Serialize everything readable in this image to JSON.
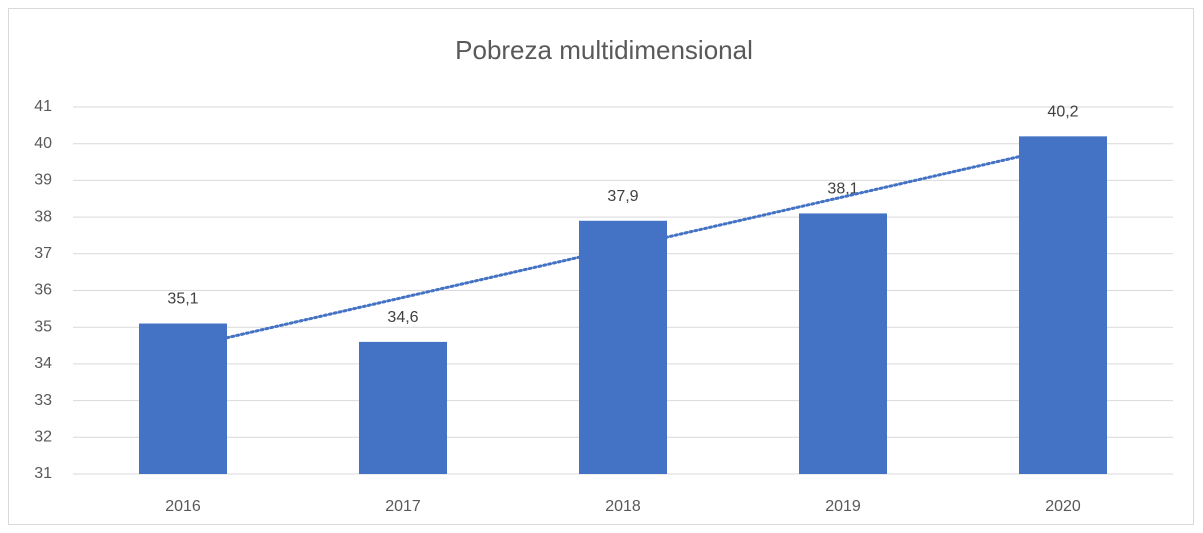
{
  "chart_data": {
    "type": "bar",
    "title": "Pobreza multidimensional",
    "categories": [
      "2016",
      "2017",
      "2018",
      "2019",
      "2020"
    ],
    "values": [
      35.1,
      34.6,
      37.9,
      38.1,
      40.2
    ],
    "value_labels": [
      "35,1",
      "34,6",
      "37,9",
      "38,1",
      "40,2"
    ],
    "color": "#4472c4",
    "ylim": [
      31,
      41
    ],
    "yticks": [
      31,
      32,
      33,
      34,
      35,
      36,
      37,
      38,
      39,
      40,
      41
    ],
    "grid": true,
    "trendline": "linear"
  }
}
